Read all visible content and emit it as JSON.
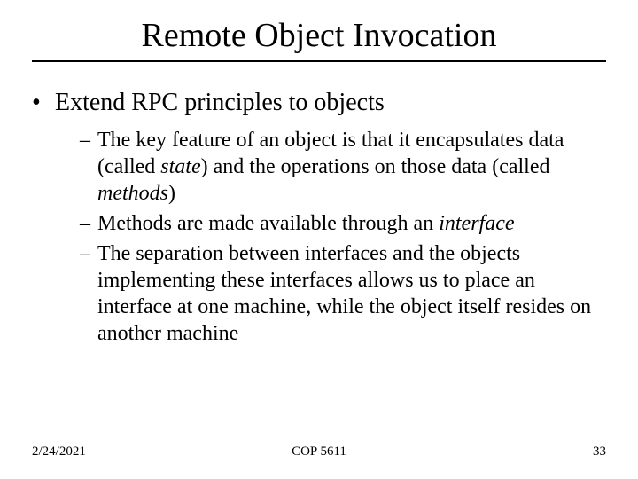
{
  "title": "Remote Object Invocation",
  "bullet1": "Extend RPC principles to objects",
  "sub1_a": "The key feature of an object is that it encapsulates data (called ",
  "sub1_b_italic": "state",
  "sub1_c": ") and the operations on those data (called ",
  "sub1_d_italic": "methods",
  "sub1_e": ")",
  "sub2_a": "Methods are made available through an ",
  "sub2_b_italic": "interface",
  "sub3": "The separation between interfaces and the objects implementing these interfaces allows us to place an interface at one machine, while the object itself resides on another machine",
  "footer": {
    "date": "2/24/2021",
    "course": "COP 5611",
    "page": "33"
  },
  "colors": {
    "text": "#000000",
    "background": "#ffffff",
    "rule": "#000000"
  },
  "typography": {
    "family": "Times New Roman",
    "title_size_pt": 38,
    "lvl1_size_pt": 28,
    "lvl2_size_pt": 24,
    "footer_size_pt": 15
  }
}
